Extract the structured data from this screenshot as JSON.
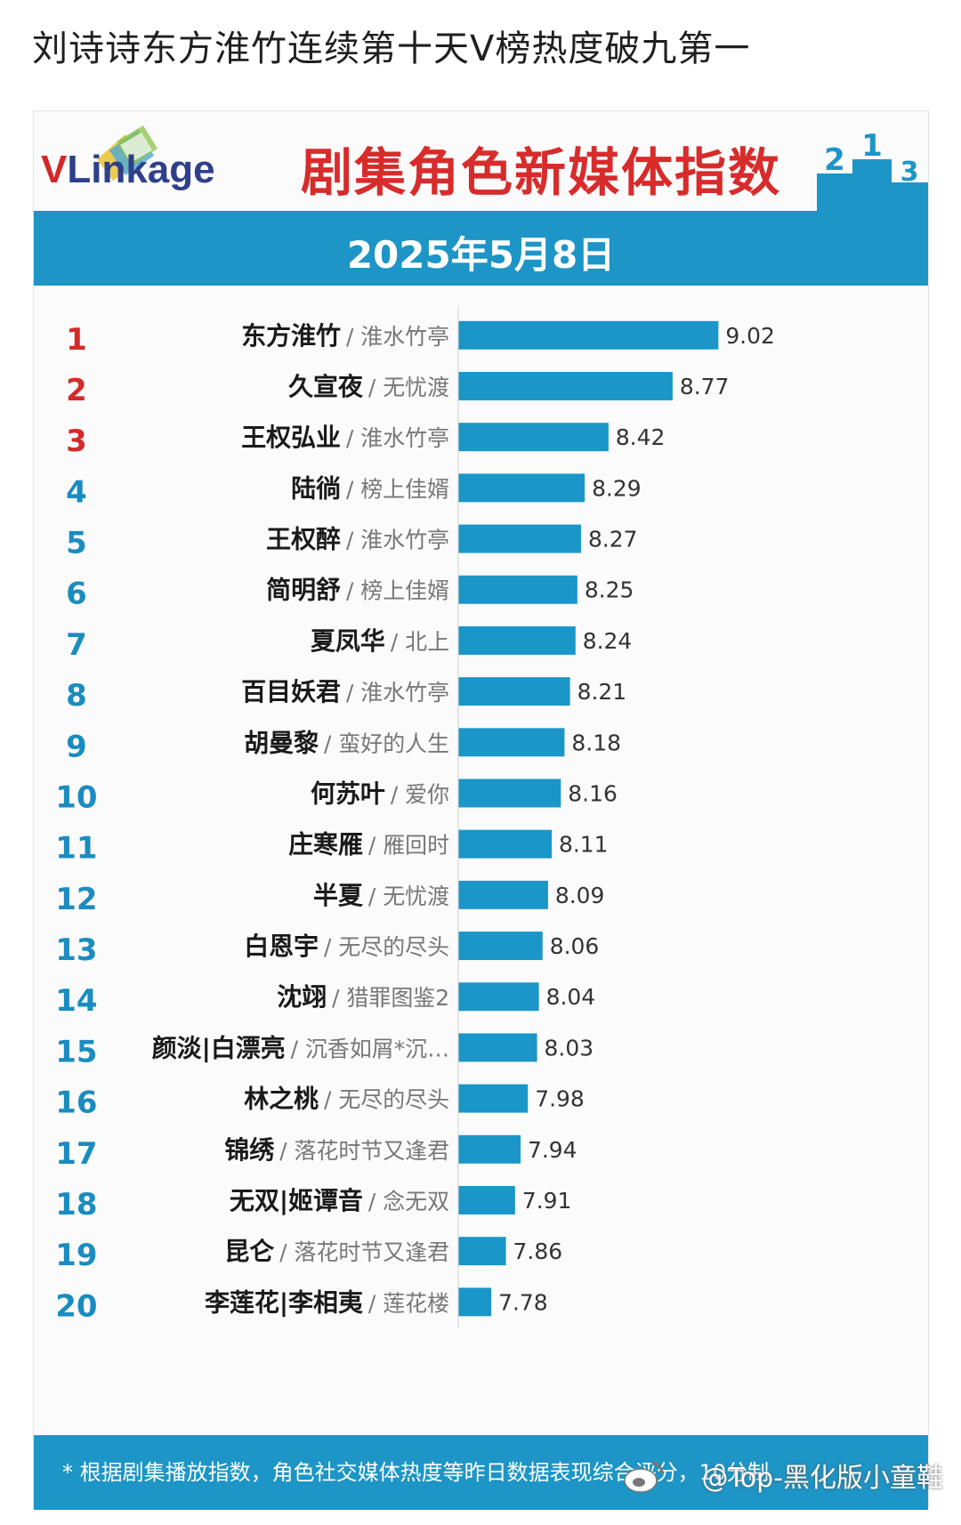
{
  "post": {
    "title": "刘诗诗东方淮竹连续第十天Ⅴ榜热度破九第一"
  },
  "brand": {
    "logo_v": "V",
    "logo_rest": "Linkage",
    "accent": "#1d95c6",
    "title_color": "#d82b2b",
    "bar_color": "#1a96c8",
    "top_rank_color": "#d32a2a",
    "rank_color": "#1a8cc0"
  },
  "chart_data": {
    "type": "bar",
    "orientation": "horizontal",
    "title": "剧集角色新媒体指数",
    "subtitle": "2025年5月8日",
    "xlim": [
      7.6,
      9.2
    ],
    "ranks": [
      "1",
      "2",
      "3",
      "4",
      "5",
      "6",
      "7",
      "8",
      "9",
      "10",
      "11",
      "12",
      "13",
      "14",
      "15",
      "16",
      "17",
      "18",
      "19",
      "20"
    ],
    "roles": [
      "东方淮竹",
      "久宣夜",
      "王权弘业",
      "陆徜",
      "王权醉",
      "简明舒",
      "夏凤华",
      "百目妖君",
      "胡曼黎",
      "何苏叶",
      "庄寒雁",
      "半夏",
      "白恩宇",
      "沈翊",
      "颜淡|白漂亮",
      "林之桃",
      "锦绣",
      "无双|姬谭音",
      "昆仑",
      "李莲花|李相夷"
    ],
    "dramas": [
      "/ 淮水竹亭",
      "/ 无忧渡",
      "/ 淮水竹亭",
      "/ 榜上佳婿",
      "/ 淮水竹亭",
      "/ 榜上佳婿",
      "/ 北上",
      "/ 淮水竹亭",
      "/ 蛮好的人生",
      "/ 爱你",
      "/ 雁回时",
      "/ 无忧渡",
      "/ 无尽的尽头",
      "/ 猎罪图鉴2",
      "/ 沉香如屑*沉…",
      "/ 无尽的尽头",
      "/ 落花时节又逢君",
      "/ 念无双",
      "/ 落花时节又逢君",
      "/ 莲花楼"
    ],
    "values": [
      9.02,
      8.77,
      8.42,
      8.29,
      8.27,
      8.25,
      8.24,
      8.21,
      8.18,
      8.16,
      8.11,
      8.09,
      8.06,
      8.04,
      8.03,
      7.98,
      7.94,
      7.91,
      7.86,
      7.78
    ],
    "value_labels": [
      "9.02",
      "8.77",
      "8.42",
      "8.29",
      "8.27",
      "8.25",
      "8.24",
      "8.21",
      "8.18",
      "8.16",
      "8.11",
      "8.09",
      "8.06",
      "8.04",
      "8.03",
      "7.98",
      "7.94",
      "7.91",
      "7.86",
      "7.78"
    ]
  },
  "footer": {
    "note": "* 根据剧集播放指数，角色社交媒体热度等昨日数据表现综合评分，10分制",
    "watermark": "@Top-黑化版小童鞋"
  }
}
